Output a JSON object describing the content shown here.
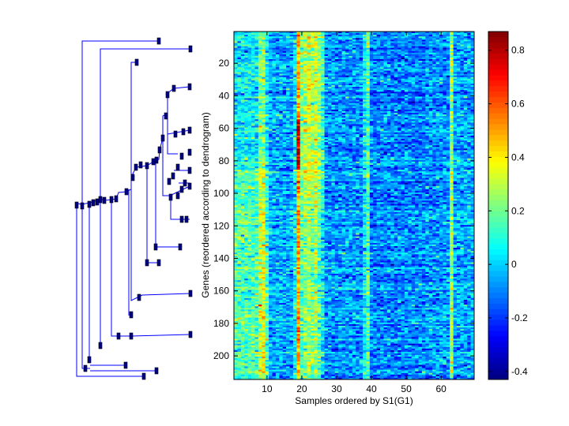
{
  "chart_data": {
    "type": "heatmap",
    "xlabel": "Samples ordered by S1(G1)",
    "ylabel": "Genes (reordered according to dendrogram)",
    "n_samples": 69,
    "n_genes": 214,
    "xticks": [
      10,
      20,
      30,
      40,
      50,
      60
    ],
    "yticks": [
      20,
      40,
      60,
      80,
      100,
      120,
      140,
      160,
      180,
      200
    ],
    "colorbar": {
      "colormap": "jet",
      "range": [
        -0.43,
        0.87
      ],
      "ticks": [
        -0.4,
        -0.2,
        0,
        0.2,
        0.4,
        0.6,
        0.8
      ],
      "tick_labels": [
        "-0.4",
        "-0.2",
        "0",
        "0.2",
        "0.4",
        "0.6",
        "0.8"
      ]
    },
    "column_profile": [
      0.05,
      0.05,
      0.05,
      0.05,
      0.05,
      0.05,
      0.05,
      0.2,
      0.25,
      0.05,
      -0.05,
      -0.05,
      -0.05,
      -0.05,
      -0.05,
      -0.05,
      -0.05,
      0.05,
      0.5,
      0.15,
      0.2,
      0.25,
      0.2,
      0.25,
      0.15,
      0.05,
      -0.08,
      -0.08,
      -0.08,
      -0.08,
      -0.08,
      -0.08,
      -0.08,
      -0.08,
      -0.08,
      -0.08,
      -0.08,
      0.05,
      0.15,
      -0.1,
      -0.1,
      -0.1,
      -0.1,
      -0.1,
      -0.1,
      -0.1,
      -0.1,
      -0.1,
      -0.1,
      -0.1,
      -0.1,
      -0.1,
      -0.1,
      -0.1,
      -0.1,
      -0.08,
      -0.08,
      -0.08,
      -0.08,
      -0.08,
      -0.08,
      -0.08,
      0.25,
      -0.05,
      -0.05,
      -0.05,
      -0.05,
      -0.05,
      -0.05
    ],
    "band_effects": [
      {
        "samples": [
          1,
          10
        ],
        "genes": [
          85,
          214
        ],
        "delta": 0.1
      },
      {
        "samples": [
          19,
          19
        ],
        "genes": [
          55,
          85
        ],
        "delta": 0.3
      },
      {
        "samples": [
          20,
          26
        ],
        "genes": [
          1,
          110
        ],
        "delta": 0.08
      }
    ],
    "noise_sd": 0.09
  }
}
